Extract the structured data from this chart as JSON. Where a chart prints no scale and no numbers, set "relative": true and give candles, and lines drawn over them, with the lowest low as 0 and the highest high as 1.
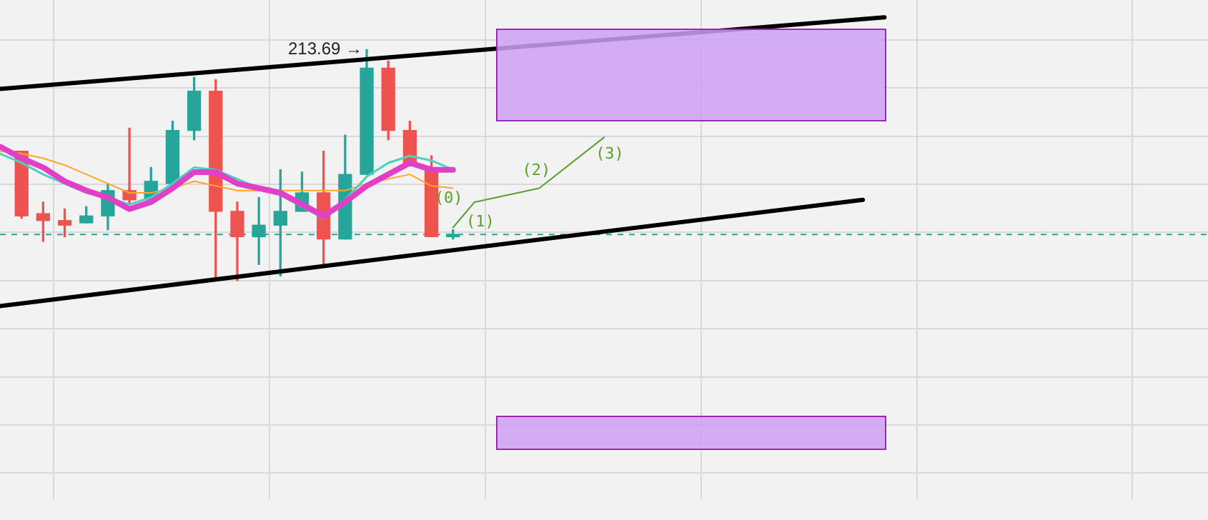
{
  "chart_data": {
    "type": "candlestick",
    "relative": true,
    "grid": true,
    "legend": false,
    "categories": [
      null,
      null,
      null,
      null,
      null,
      null,
      null,
      null,
      null,
      null,
      null,
      null,
      null,
      null,
      null,
      null,
      null,
      null,
      null,
      null,
      null,
      null,
      null,
      null,
      null,
      null,
      null,
      null,
      null,
      null,
      null,
      null,
      null,
      null,
      null,
      null,
      null,
      null,
      null,
      null,
      null,
      null,
      null,
      null,
      null,
      null,
      null,
      null,
      null,
      null,
      null,
      null,
      null,
      null,
      null,
      null,
      null
    ],
    "ohlc": [
      null,
      [
        0.56,
        0.56,
        0.27,
        0.28
      ],
      [
        0.29,
        0.34,
        0.17,
        0.26
      ],
      [
        0.26,
        0.31,
        0.19,
        0.24
      ],
      [
        0.25,
        0.32,
        0.25,
        0.28
      ],
      [
        0.28,
        0.42,
        0.22,
        0.39
      ],
      [
        0.39,
        0.66,
        0.33,
        0.35
      ],
      [
        0.35,
        0.49,
        0.35,
        0.43
      ],
      [
        0.42,
        0.69,
        0.42,
        0.65
      ],
      [
        0.65,
        0.88,
        0.61,
        0.82
      ],
      [
        0.82,
        0.87,
        0.01,
        0.3
      ],
      [
        0.3,
        0.34,
        0.0,
        0.19
      ],
      [
        0.19,
        0.36,
        0.07,
        0.24
      ],
      [
        0.24,
        0.48,
        0.02,
        0.3
      ],
      [
        0.3,
        0.47,
        0.3,
        0.38
      ],
      [
        0.38,
        0.56,
        0.07,
        0.18
      ],
      [
        0.18,
        0.63,
        0.18,
        0.46
      ],
      [
        0.46,
        1.0,
        0.46,
        0.92
      ],
      [
        0.92,
        0.95,
        0.61,
        0.65
      ],
      [
        0.65,
        0.69,
        0.5,
        0.5
      ],
      [
        0.48,
        0.54,
        0.19,
        0.19
      ],
      [
        0.19,
        0.22,
        0.18,
        0.2
      ],
      null,
      null,
      null,
      null,
      null,
      null,
      null,
      null,
      null,
      null,
      null,
      null,
      null,
      null,
      null,
      null,
      null,
      null,
      null,
      null,
      null,
      null,
      null,
      null,
      null,
      null,
      null,
      null,
      null,
      null,
      null,
      null,
      null,
      null,
      null
    ],
    "colors": [
      null,
      "#ef5350",
      "#ef5350",
      "#ef5350",
      "#26a69a",
      "#26a69a",
      "#ef5350",
      "#26a69a",
      "#26a69a",
      "#26a69a",
      "#ef5350",
      "#ef5350",
      "#26a69a",
      "#26a69a",
      "#26a69a",
      "#ef5350",
      "#26a69a",
      "#26a69a",
      "#ef5350",
      "#ef5350",
      "#ef5350",
      "#26a69a",
      null,
      null,
      null,
      null,
      null,
      null,
      null,
      null,
      null,
      null,
      null,
      null,
      null,
      null,
      null,
      null,
      null,
      null,
      null,
      null,
      null,
      null,
      null,
      null,
      null,
      null,
      null,
      null,
      null,
      null,
      null,
      null,
      null,
      null,
      null
    ],
    "series": [
      {
        "type": "line",
        "color": "#000000",
        "values": [
          0.83,
          null,
          null,
          null,
          null,
          null,
          null,
          null,
          null,
          null,
          null,
          null,
          null,
          null,
          null,
          null,
          null,
          null,
          null,
          null,
          null,
          null,
          null,
          null,
          null,
          null,
          null,
          null,
          null,
          null,
          null,
          null,
          null,
          null,
          null,
          null,
          null,
          null,
          null,
          null,
          null,
          1.14,
          null,
          null,
          null,
          null,
          null,
          null,
          null,
          null,
          null,
          null,
          null,
          null,
          null,
          null,
          null
        ]
      },
      {
        "type": "line",
        "color": "#000000",
        "values": [
          -0.11,
          null,
          null,
          null,
          null,
          null,
          null,
          null,
          null,
          null,
          null,
          null,
          null,
          null,
          null,
          null,
          null,
          null,
          null,
          null,
          null,
          null,
          null,
          null,
          null,
          null,
          null,
          null,
          null,
          null,
          null,
          null,
          null,
          null,
          null,
          null,
          null,
          null,
          null,
          null,
          0.35,
          null,
          null,
          null,
          null,
          null,
          null,
          null,
          null,
          null,
          null,
          null,
          null,
          null,
          null,
          null,
          null
        ]
      },
      {
        "type": "line",
        "color": "#ffa726",
        "values": [
          0.56,
          0.55,
          0.53,
          0.5,
          0.46,
          0.42,
          0.38,
          0.38,
          0.4,
          0.43,
          0.41,
          0.39,
          0.39,
          0.39,
          0.39,
          0.39,
          0.39,
          0.42,
          0.44,
          0.46,
          0.41,
          0.4,
          null,
          null,
          null,
          null,
          null,
          null,
          null,
          null,
          null,
          null,
          null,
          null,
          null,
          null,
          null,
          null,
          null,
          null,
          null,
          null,
          null,
          null,
          null,
          null,
          null,
          null,
          null,
          null,
          null,
          null,
          null,
          null,
          null,
          null,
          null
        ]
      },
      {
        "type": "line",
        "color": "#4dd0c0",
        "values": [
          0.55,
          0.51,
          0.46,
          0.42,
          0.38,
          0.36,
          0.33,
          0.36,
          0.42,
          0.49,
          0.48,
          0.44,
          0.4,
          0.37,
          0.32,
          0.27,
          0.35,
          0.45,
          0.51,
          0.54,
          0.52,
          0.48,
          null,
          null,
          null,
          null,
          null,
          null,
          null,
          null,
          null,
          null,
          null,
          null,
          null,
          null,
          null,
          null,
          null,
          null,
          null,
          null,
          null,
          null,
          null,
          null,
          null,
          null,
          null,
          null,
          null,
          null,
          null,
          null,
          null,
          null,
          null
        ]
      },
      {
        "type": "line",
        "color": "#e040c8",
        "values": [
          0.58,
          0.53,
          0.49,
          0.43,
          0.39,
          0.36,
          0.31,
          0.34,
          0.4,
          0.47,
          0.47,
          0.42,
          0.4,
          0.38,
          0.33,
          0.28,
          0.34,
          0.41,
          0.46,
          0.51,
          0.48,
          0.48,
          null,
          null,
          null,
          null,
          null,
          null,
          null,
          null,
          null,
          null,
          null,
          null,
          null,
          null,
          null,
          null,
          null,
          null,
          null,
          null,
          null,
          null,
          null,
          null,
          null,
          null,
          null,
          null,
          null,
          null,
          null,
          null,
          null,
          null,
          null
        ]
      },
      {
        "type": "line",
        "color": "#5aa02c",
        "values": [
          null,
          null,
          null,
          null,
          null,
          null,
          null,
          null,
          null,
          null,
          null,
          null,
          null,
          null,
          null,
          null,
          null,
          null,
          null,
          null,
          null,
          0.23,
          0.34,
          null,
          null,
          0.4,
          null,
          null,
          0.62,
          null,
          null,
          null,
          null,
          null,
          null,
          null,
          null,
          null,
          null,
          null,
          null,
          null,
          null,
          null,
          null,
          null,
          null,
          null,
          null,
          null,
          null,
          null,
          null,
          null,
          null,
          null,
          null
        ]
      }
    ],
    "ref_lines": [
      {
        "axis": "y",
        "value": 0.2,
        "color": "#26a69a",
        "line_style": "dashed"
      }
    ],
    "annotations": [
      "213.69 →",
      "(0)",
      "(1)",
      "(2)",
      "(3)"
    ]
  }
}
